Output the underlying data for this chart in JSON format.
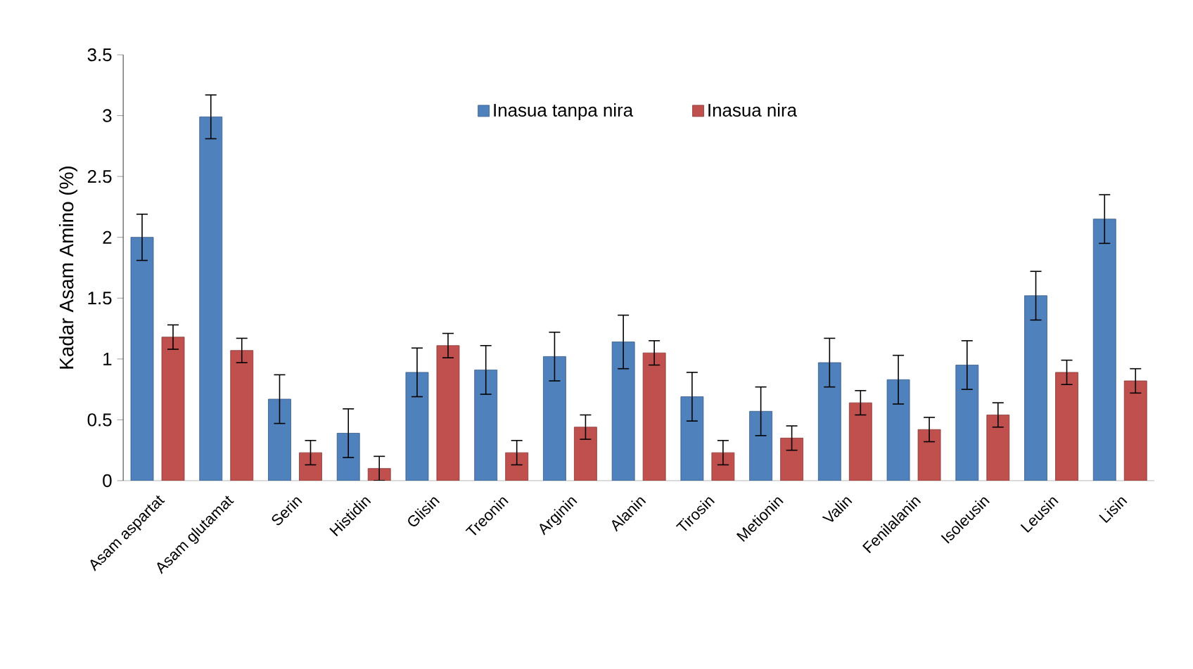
{
  "chart_data": {
    "type": "bar",
    "ylabel": "Kadar Asam Amino (%)",
    "categories": [
      "Asam aspartat",
      "Asam glutamat",
      "Serin",
      "Histidin",
      "Glisin",
      "Treonin",
      "Arginin",
      "Alanin",
      "Tirosin",
      "Metionin",
      "Valin",
      "Fenilalanin",
      "Isoleusin",
      "Leusin",
      "Lisin"
    ],
    "series": [
      {
        "name": "Inasua tanpa nira",
        "color": "#4f81bd",
        "values": [
          2.0,
          2.99,
          0.67,
          0.39,
          0.89,
          0.91,
          1.02,
          1.14,
          0.69,
          0.57,
          0.97,
          0.83,
          0.95,
          1.52,
          2.15
        ],
        "errors": [
          0.19,
          0.18,
          0.2,
          0.2,
          0.2,
          0.2,
          0.2,
          0.22,
          0.2,
          0.2,
          0.2,
          0.2,
          0.2,
          0.2,
          0.2
        ]
      },
      {
        "name": "Inasua nira",
        "color": "#c0504d",
        "values": [
          1.18,
          1.07,
          0.23,
          0.1,
          1.11,
          0.23,
          0.44,
          1.05,
          0.23,
          0.35,
          0.64,
          0.42,
          0.54,
          0.89,
          0.82
        ],
        "errors": [
          0.1,
          0.1,
          0.1,
          0.1,
          0.1,
          0.1,
          0.1,
          0.1,
          0.1,
          0.1,
          0.1,
          0.1,
          0.1,
          0.1,
          0.1
        ]
      }
    ],
    "ylim": [
      0,
      3.5
    ],
    "yticks": [
      0,
      0.5,
      1,
      1.5,
      2,
      2.5,
      3,
      3.5
    ],
    "grid": false,
    "legend": "top"
  }
}
